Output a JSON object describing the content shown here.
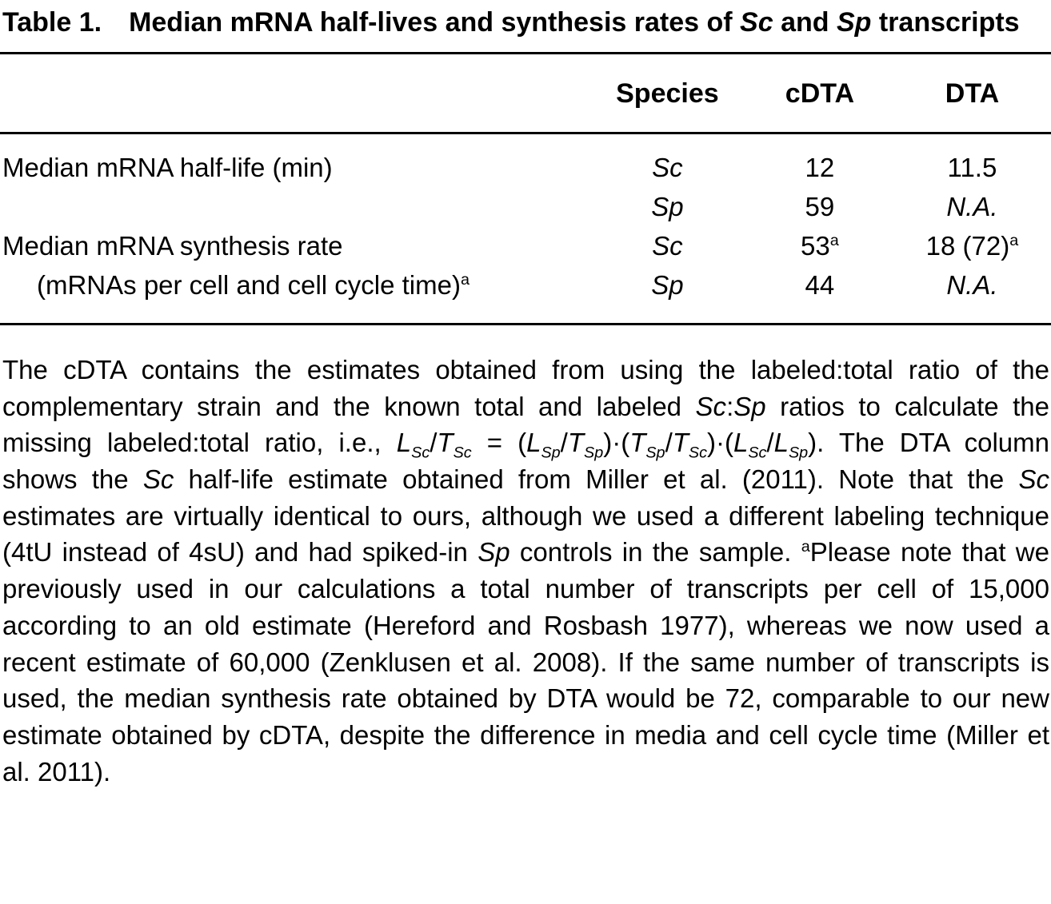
{
  "title": {
    "runs": [
      {
        "t": "Table 1.  Median mRNA half-lives and synthesis rates of "
      },
      {
        "t": "Sc",
        "i": true
      },
      {
        "t": " and "
      },
      {
        "t": "Sp",
        "i": true
      },
      {
        "t": " transcripts"
      }
    ]
  },
  "table": {
    "headers": {
      "label": "",
      "species": "Species",
      "cdta": "cDTA",
      "dta": "DTA"
    },
    "rows": [
      {
        "label": [
          {
            "t": "Median mRNA half-life (min)"
          }
        ],
        "species": [
          {
            "t": "Sc",
            "i": true
          }
        ],
        "cdta": [
          {
            "t": "12"
          }
        ],
        "dta": [
          {
            "t": "11.5"
          }
        ]
      },
      {
        "label": [],
        "species": [
          {
            "t": "Sp",
            "i": true
          }
        ],
        "cdta": [
          {
            "t": "59"
          }
        ],
        "dta": [
          {
            "t": "N.A.",
            "i": true
          }
        ]
      },
      {
        "label": [
          {
            "t": "Median mRNA synthesis rate"
          }
        ],
        "species": [
          {
            "t": "Sc",
            "i": true
          }
        ],
        "cdta": [
          {
            "t": "53"
          },
          {
            "t": "a",
            "sup": true
          }
        ],
        "dta": [
          {
            "t": "18 (72)"
          },
          {
            "t": "a",
            "sup": true
          }
        ]
      },
      {
        "label": [
          {
            "t": "(mRNAs per cell and cell cycle time)"
          },
          {
            "t": "a",
            "sup": true
          }
        ],
        "species": [
          {
            "t": "Sp",
            "i": true
          }
        ],
        "cdta": [
          {
            "t": "44"
          }
        ],
        "dta": [
          {
            "t": "N.A.",
            "i": true
          }
        ]
      }
    ]
  },
  "footnote": {
    "runs": [
      {
        "t": "The cDTA contains the estimates obtained from using the labeled:total ratio of the complementary strain and the known total and labeled "
      },
      {
        "t": "Sc",
        "i": true
      },
      {
        "t": ":"
      },
      {
        "t": "Sp",
        "i": true
      },
      {
        "t": " ratios to calculate the missing labeled:total ratio, i.e., "
      },
      {
        "t": "L",
        "i": true
      },
      {
        "t": "Sc",
        "i": true,
        "sub": true
      },
      {
        "t": "/"
      },
      {
        "t": "T",
        "i": true
      },
      {
        "t": "Sc",
        "i": true,
        "sub": true
      },
      {
        "t": " = ("
      },
      {
        "t": "L",
        "i": true
      },
      {
        "t": "Sp",
        "i": true,
        "sub": true
      },
      {
        "t": "/"
      },
      {
        "t": "T",
        "i": true
      },
      {
        "t": "Sp",
        "i": true,
        "sub": true
      },
      {
        "t": ")·("
      },
      {
        "t": "T",
        "i": true
      },
      {
        "t": "Sp",
        "i": true,
        "sub": true
      },
      {
        "t": "/"
      },
      {
        "t": "T",
        "i": true
      },
      {
        "t": "Sc",
        "i": true,
        "sub": true
      },
      {
        "t": ")·("
      },
      {
        "t": "L",
        "i": true
      },
      {
        "t": "Sc",
        "i": true,
        "sub": true
      },
      {
        "t": "/"
      },
      {
        "t": "L",
        "i": true
      },
      {
        "t": "Sp",
        "i": true,
        "sub": true
      },
      {
        "t": "). The DTA column shows the "
      },
      {
        "t": "Sc",
        "i": true
      },
      {
        "t": " half-life estimate obtained from Miller et al. (2011). Note that the "
      },
      {
        "t": "Sc",
        "i": true
      },
      {
        "t": " estimates are virtually identical to ours, although we used a different labeling technique (4tU instead of 4sU) and had spiked-in "
      },
      {
        "t": "Sp",
        "i": true
      },
      {
        "t": " controls in the sample. "
      },
      {
        "t": "a",
        "sup": true
      },
      {
        "t": "Please note that we previously used in our calculations a total number of transcripts per cell of 15,000 according to an old estimate (Hereford and Rosbash 1977), whereas we now used a recent estimate of 60,000 (Zenklusen et al. 2008). If the same number of transcripts is used, the median synthesis rate obtained by DTA would be 72, comparable to our new estimate obtained by cDTA, despite the difference in media and cell cycle time (Miller et al. 2011)."
      }
    ]
  }
}
